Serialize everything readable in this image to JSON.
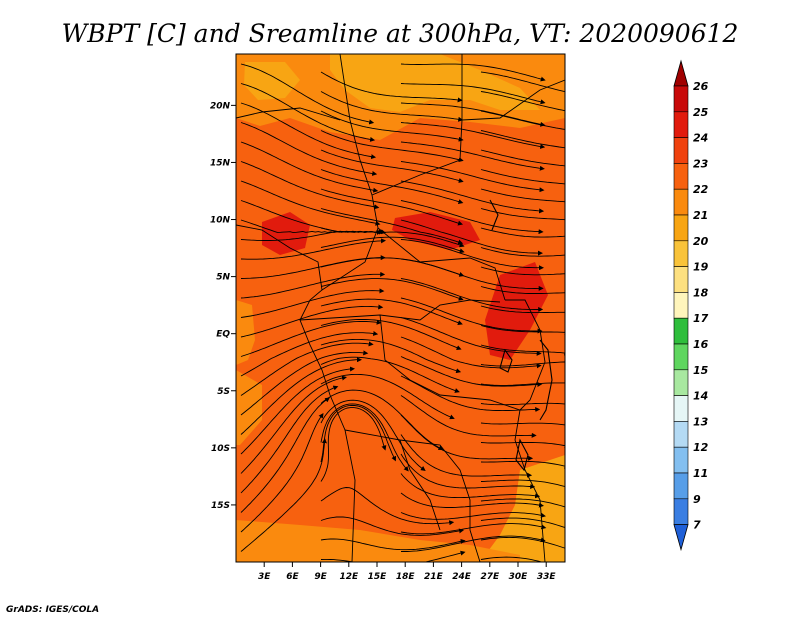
{
  "chart_data": {
    "type": "heatmap",
    "title": "WBPT [C] and Sreamline at 300hPa, VT: 2020090612",
    "variable": "WBPT [C]",
    "level": "300hPa",
    "valid_time": "2020090612",
    "overlay": "streamlines",
    "x_axis": {
      "label": "",
      "range": [
        0,
        35
      ],
      "ticks": [
        3,
        6,
        9,
        12,
        15,
        18,
        21,
        24,
        27,
        30,
        33
      ],
      "tick_labels": [
        "3E",
        "6E",
        "9E",
        "12E",
        "15E",
        "18E",
        "21E",
        "24E",
        "27E",
        "30E",
        "33E"
      ]
    },
    "y_axis": {
      "label": "",
      "range": [
        -20,
        24.5
      ],
      "ticks": [
        20,
        15,
        10,
        5,
        0,
        -5,
        -10,
        -15
      ],
      "tick_labels": [
        "20N",
        "15N",
        "10N",
        "5N",
        "EQ",
        "5S",
        "10S",
        "15S"
      ]
    },
    "colorbar": {
      "levels": [
        26,
        25,
        24,
        23,
        22,
        21,
        20,
        19,
        18,
        17,
        16,
        15,
        14,
        13,
        12,
        11,
        9,
        7
      ],
      "colors": [
        "#a00000",
        "#c80a0a",
        "#e11b0d",
        "#f0420e",
        "#f7610f",
        "#fa8a0e",
        "#f8a513",
        "#f9c33a",
        "#fde080",
        "#fff5bc",
        "#2fbe3c",
        "#5fd65f",
        "#a8e8a0",
        "#e6f6f6",
        "#b4daf4",
        "#83bff0",
        "#579ee8",
        "#3a7ee2",
        "#1f60d8"
      ]
    },
    "value_range_shown": [
      20,
      24
    ],
    "regions": [
      {
        "name": "background",
        "value": 22.5
      },
      {
        "name": "north-warm-band",
        "value": 21
      },
      {
        "name": "north-cool-patch",
        "value": 20.5
      },
      {
        "name": "southeast-cool-patch",
        "value": 20.5
      },
      {
        "name": "southwest-cool-strip",
        "value": 21
      },
      {
        "name": "hot-patch-10N-6E",
        "value": 23.5
      },
      {
        "name": "hot-patch-10N-20E",
        "value": 23.5
      },
      {
        "name": "hot-patch-east-africa",
        "value": 23.5
      }
    ]
  },
  "credit": "GrADS: IGES/COLA",
  "colors": {
    "background_fill": "#f7610f",
    "cool_fill": "#fa8a0e",
    "cooler_fill": "#f8a513",
    "hot_fill": "#e11b0d"
  }
}
